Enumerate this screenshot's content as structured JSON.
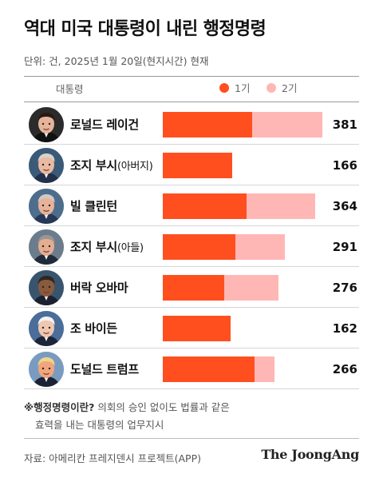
{
  "title": "역대 미국 대통령이 내린 행정명령",
  "subtitle": "단위: 건, 2025년 1월 20일(현지시간) 현재",
  "column_header": "대통령",
  "legend": [
    {
      "label": "1기",
      "color": "#ff4f1f"
    },
    {
      "label": "2기",
      "color": "#ffb7b5"
    }
  ],
  "footnote": {
    "lead": "※행정명령이란?",
    "line1_rest": " 의회의 승인 없이도 법률과 같은",
    "line2": "효력을 내는 대통령의 업무지시"
  },
  "source": "자료: 아메리칸 프레지덴시 프로젝트(APP)",
  "brand": "The JoongAng",
  "chart_data": {
    "type": "bar",
    "orientation": "horizontal",
    "stacked": true,
    "categories": [
      "로널드 레이건",
      "조지 부시(아버지)",
      "빌 클린턴",
      "조지 부시(아들)",
      "버락 오바마",
      "조 바이든",
      "도널드 트럼프"
    ],
    "category_main": [
      "로널드 레이건",
      "조지 부시",
      "빌 클린턴",
      "조지 부시",
      "버락 오바마",
      "조 바이든",
      "도널드 트럼프"
    ],
    "category_note": [
      "",
      "(아버지)",
      "",
      "(아들)",
      "",
      "",
      ""
    ],
    "totals": [
      381,
      166,
      364,
      291,
      276,
      162,
      266
    ],
    "series": [
      {
        "name": "1기",
        "color": "#ff4f1f",
        "values": [
          213,
          166,
          200,
          173,
          147,
          162,
          220
        ]
      },
      {
        "name": "2기",
        "color": "#ffb7b5",
        "values": [
          168,
          0,
          164,
          118,
          129,
          0,
          46
        ]
      }
    ],
    "xlim": [
      0,
      381
    ]
  }
}
